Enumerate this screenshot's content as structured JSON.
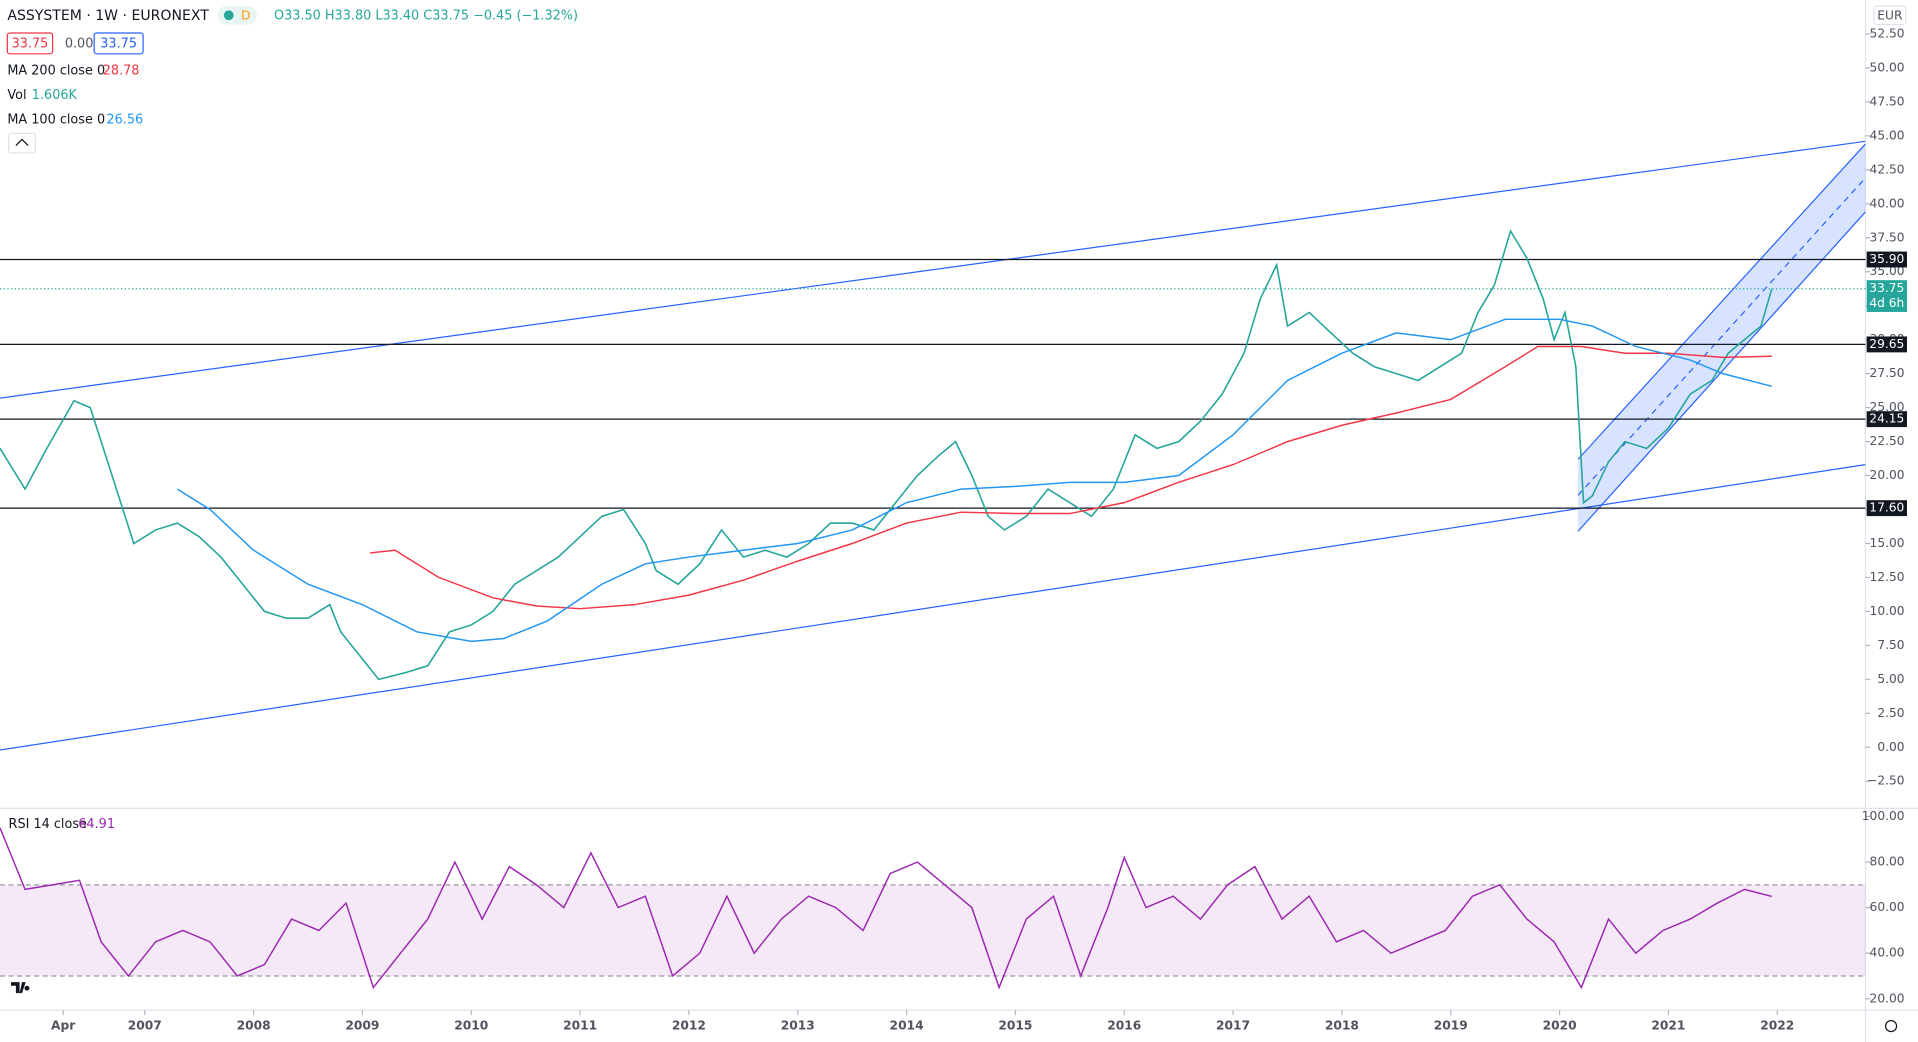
{
  "chart_data": {
    "type": "line",
    "title": "ASSYSTEM · 1W · EURONEXT",
    "interval_badge": "D",
    "ohlc": "O33.50 H33.80 L33.40 C33.75 −0.45 (−1.32%)",
    "price_boxes": {
      "bid": {
        "value": 33.75,
        "label": "33.75"
      },
      "spread": {
        "value": 0,
        "label": "0.00"
      },
      "ask": {
        "value": 33.75,
        "label": "33.75"
      }
    },
    "currency": "EUR",
    "xlim": [
      2005.67,
      2022.81
    ],
    "xticks": [
      {
        "value": 2006.25,
        "label": "Apr"
      },
      2007,
      2008,
      2009,
      2010,
      2011,
      2012,
      2013,
      2014,
      2015,
      2016,
      2017,
      2018,
      2019,
      2020,
      2021,
      2022
    ],
    "ylim": [
      -4.5,
      55
    ],
    "yticks": [
      {
        "value": 52.5,
        "label": "52.50"
      },
      {
        "value": 50,
        "label": "50.00"
      },
      {
        "value": 47.5,
        "label": "47.50"
      },
      {
        "value": 45,
        "label": "45.00"
      },
      {
        "value": 42.5,
        "label": "42.50"
      },
      {
        "value": 40,
        "label": "40.00"
      },
      {
        "value": 37.5,
        "label": "37.50"
      },
      {
        "value": 35,
        "label": "35.00"
      },
      {
        "value": 32.5,
        "label": "32.50"
      },
      {
        "value": 30,
        "label": "30.00"
      },
      {
        "value": 27.5,
        "label": "27.50"
      },
      {
        "value": 25,
        "label": "25.00"
      },
      {
        "value": 22.5,
        "label": "22.50"
      },
      {
        "value": 20,
        "label": "20.00"
      },
      {
        "value": 17.5,
        "label": "17.50"
      },
      {
        "value": 15,
        "label": "15.00"
      },
      {
        "value": 12.5,
        "label": "12.50"
      },
      {
        "value": 10,
        "label": "10.00"
      },
      {
        "value": 7.5,
        "label": "7.50"
      },
      {
        "value": 5,
        "label": "5.00"
      },
      {
        "value": 2.5,
        "label": "2.50"
      },
      {
        "value": 0,
        "label": "0.00"
      },
      {
        "value": -2.5,
        "label": "−2.50"
      }
    ],
    "price": {
      "color": "#26a69a",
      "x": [
        2005.67,
        2005.9,
        2006.1,
        2006.35,
        2006.5,
        2006.7,
        2006.9,
        2007.1,
        2007.3,
        2007.5,
        2007.7,
        2007.9,
        2008.1,
        2008.3,
        2008.5,
        2008.7,
        2008.8,
        2009.0,
        2009.15,
        2009.4,
        2009.6,
        2009.8,
        2010.0,
        2010.2,
        2010.4,
        2010.6,
        2010.8,
        2011.0,
        2011.2,
        2011.4,
        2011.6,
        2011.7,
        2011.9,
        2012.1,
        2012.3,
        2012.5,
        2012.7,
        2012.9,
        2013.1,
        2013.3,
        2013.5,
        2013.7,
        2013.9,
        2014.1,
        2014.3,
        2014.45,
        2014.6,
        2014.75,
        2014.9,
        2015.1,
        2015.3,
        2015.5,
        2015.7,
        2015.9,
        2016.0,
        2016.1,
        2016.3,
        2016.5,
        2016.7,
        2016.9,
        2017.0,
        2017.1,
        2017.25,
        2017.4,
        2017.5,
        2017.7,
        2017.9,
        2018.1,
        2018.3,
        2018.5,
        2018.7,
        2018.9,
        2019.1,
        2019.25,
        2019.4,
        2019.55,
        2019.7,
        2019.85,
        2019.95,
        2020.05,
        2020.15,
        2020.22,
        2020.3,
        2020.45,
        2020.6,
        2020.8,
        2021.0,
        2021.2,
        2021.4,
        2021.55,
        2021.7,
        2021.85,
        2021.95
      ],
      "values": [
        22,
        19,
        22,
        25.5,
        25,
        20,
        15,
        16,
        16.5,
        15.5,
        14,
        12,
        10,
        9.5,
        9.5,
        10.5,
        8.5,
        6.5,
        5,
        5.5,
        6,
        8.5,
        9,
        10,
        12,
        13,
        14,
        15.5,
        17,
        17.5,
        15,
        13,
        12,
        13.5,
        16,
        14,
        14.5,
        14,
        15,
        16.5,
        16.5,
        16,
        18,
        20,
        21.5,
        22.5,
        20,
        17,
        16,
        17,
        19,
        18,
        17,
        19,
        21,
        23,
        22,
        22.5,
        24,
        26,
        27.5,
        29,
        33,
        35.5,
        31,
        32,
        30.5,
        29,
        28,
        27.5,
        27,
        28,
        29,
        32,
        34,
        38,
        36,
        33,
        30,
        32,
        28,
        18,
        18.5,
        21,
        22.5,
        22,
        23.5,
        26,
        27,
        29,
        30,
        31,
        33.75
      ]
    },
    "series": [
      {
        "name": "MA 200 close 0",
        "color": "#f23645",
        "legend_value": 28.78,
        "x": [
          2009.07,
          2009.3,
          2009.7,
          2010.2,
          2010.6,
          2011.0,
          2011.5,
          2012.0,
          2012.5,
          2013.0,
          2013.5,
          2014.0,
          2014.5,
          2015.0,
          2015.5,
          2016.0,
          2016.5,
          2017.0,
          2017.5,
          2018.0,
          2018.5,
          2019.0,
          2019.5,
          2019.8,
          2020.2,
          2020.6,
          2021.0,
          2021.5,
          2021.95
        ],
        "values": [
          14.3,
          14.5,
          12.5,
          11,
          10.4,
          10.2,
          10.5,
          11.2,
          12.3,
          13.7,
          15,
          16.5,
          17.3,
          17.2,
          17.2,
          18,
          19.5,
          20.8,
          22.5,
          23.7,
          24.6,
          25.6,
          28,
          29.5,
          29.5,
          29,
          29,
          28.7,
          28.78
        ]
      },
      {
        "name": "MA 100 close 0",
        "color": "#2196f3",
        "legend_value": 26.56,
        "x": [
          2007.3,
          2007.6,
          2008.0,
          2008.5,
          2009.0,
          2009.5,
          2010.0,
          2010.3,
          2010.7,
          2011.2,
          2011.6,
          2012.0,
          2012.5,
          2013.0,
          2013.5,
          2014.0,
          2014.5,
          2015.0,
          2015.5,
          2016.0,
          2016.5,
          2017.0,
          2017.5,
          2018.0,
          2018.5,
          2019.0,
          2019.5,
          2020.0,
          2020.3,
          2020.7,
          2021.2,
          2021.5,
          2021.95
        ],
        "values": [
          19,
          17.5,
          14.5,
          12,
          10.5,
          8.5,
          7.8,
          8,
          9.3,
          12,
          13.5,
          14,
          14.5,
          15,
          16,
          18,
          19,
          19.2,
          19.5,
          19.5,
          20,
          23,
          27,
          29,
          30.5,
          30,
          31.5,
          31.5,
          31,
          29.5,
          28.5,
          27.5,
          26.56
        ]
      }
    ],
    "volume": {
      "name": "Vol",
      "label": "1.606K"
    },
    "levels": [
      {
        "value": 35.9,
        "label": "35.90"
      },
      {
        "value": 29.65,
        "label": "29.65"
      },
      {
        "value": 24.15,
        "label": "24.15"
      },
      {
        "value": 17.6,
        "label": "17.60"
      }
    ],
    "last_price": {
      "value": 33.75,
      "label": "33.75",
      "countdown": "4d 6h"
    },
    "trend_lines": [
      {
        "from": [
          2005.67,
          25.7
        ],
        "to": [
          2022.81,
          44.6
        ]
      },
      {
        "from": [
          2005.67,
          -0.2
        ],
        "to": [
          2022.81,
          20.8
        ]
      }
    ],
    "channel": {
      "lower": {
        "from": [
          2020.17,
          15.9
        ],
        "to": [
          2022.81,
          39.4
        ]
      },
      "upper": {
        "from": [
          2020.17,
          21.2
        ],
        "to": [
          2022.81,
          44.4
        ]
      }
    },
    "rsi": {
      "name": "RSI 14 close",
      "legend_value": 64.91,
      "color": "#9c27b0",
      "ylim": [
        15,
        103
      ],
      "yticks": [
        {
          "value": 100,
          "label": "100.00"
        },
        {
          "value": 80,
          "label": "80.00"
        },
        {
          "value": 60,
          "label": "60.00"
        },
        {
          "value": 40,
          "label": "40.00"
        },
        {
          "value": 20,
          "label": "20.00"
        }
      ],
      "band": [
        30,
        70
      ],
      "x": [
        2005.67,
        2005.9,
        2006.15,
        2006.4,
        2006.6,
        2006.85,
        2007.1,
        2007.35,
        2007.6,
        2007.85,
        2008.1,
        2008.35,
        2008.6,
        2008.85,
        2009.1,
        2009.35,
        2009.6,
        2009.85,
        2010.1,
        2010.35,
        2010.6,
        2010.85,
        2011.1,
        2011.35,
        2011.6,
        2011.85,
        2012.1,
        2012.35,
        2012.6,
        2012.85,
        2013.1,
        2013.35,
        2013.6,
        2013.85,
        2014.1,
        2014.35,
        2014.6,
        2014.85,
        2015.1,
        2015.35,
        2015.6,
        2015.85,
        2016.0,
        2016.2,
        2016.45,
        2016.7,
        2016.95,
        2017.2,
        2017.45,
        2017.7,
        2017.95,
        2018.2,
        2018.45,
        2018.7,
        2018.95,
        2019.2,
        2019.45,
        2019.7,
        2019.95,
        2020.2,
        2020.45,
        2020.7,
        2020.95,
        2021.2,
        2021.45,
        2021.7,
        2021.95
      ],
      "values": [
        95,
        68,
        70,
        72,
        45,
        30,
        45,
        50,
        45,
        30,
        35,
        55,
        50,
        62,
        25,
        40,
        55,
        80,
        55,
        78,
        70,
        60,
        84,
        60,
        65,
        30,
        40,
        65,
        40,
        55,
        65,
        60,
        50,
        75,
        80,
        70,
        60,
        25,
        55,
        65,
        30,
        60,
        82,
        60,
        65,
        55,
        70,
        78,
        55,
        65,
        45,
        50,
        40,
        45,
        50,
        65,
        70,
        55,
        45,
        25,
        55,
        40,
        50,
        55,
        62,
        68,
        64.91
      ]
    }
  }
}
